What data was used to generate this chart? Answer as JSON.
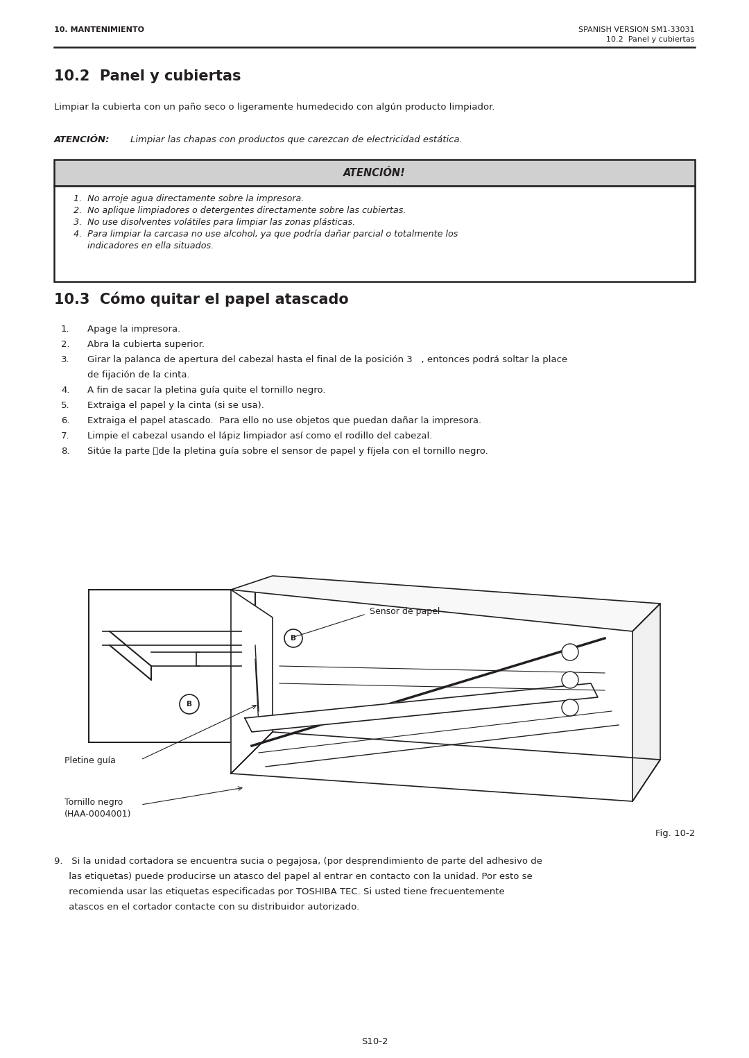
{
  "page_width": 10.8,
  "page_height": 15.25,
  "bg_color": "#ffffff",
  "header_left": "10. MANTENIMIENTO",
  "header_right": "SPANISH VERSION SM1-33031",
  "header_right2": "10.2  Panel y cubiertas",
  "section1_title": "10.2  Panel y cubiertas",
  "section1_body": "Limpiar la cubierta con un paño seco o ligeramente humedecido con algún producto limpiador.",
  "atenci_label": "ATENCIÓN:",
  "atenci_text": "Limpiar las chapas con productos que carezcan de electricidad estática.",
  "box_title": "ATENCIÓN!",
  "box_items": [
    "1.  No arroje agua directamente sobre la impresora.",
    "2.  No aplique limpiadores o detergentes directamente sobre las cubiertas.",
    "3.  No use disolventes volátiles para limpiar las zonas plásticas.",
    "4.  Para limpiar la carcasa no use alcohol, ya que podría dañar parcial o totalmente los",
    "     indicadores en ella situados."
  ],
  "section2_title": "10.3  Cómo quitar el papel atascado",
  "section2_items": [
    [
      "1.",
      "Apage la impresora."
    ],
    [
      "2.",
      "Abra la cubierta superior."
    ],
    [
      "3.",
      "Girar la palanca de apertura del cabezal hasta el final de la posición 3   , entonces podrá soltar la place"
    ],
    [
      "",
      "de fijación de la cinta."
    ],
    [
      "4.",
      "A fin de sacar la pletina guía quite el tornillo negro."
    ],
    [
      "5.",
      "Extraiga el papel y la cinta (si se usa)."
    ],
    [
      "6.",
      "Extraiga el papel atascado.  Para ello no use objetos que puedan dañar la impresora."
    ],
    [
      "7.",
      "Limpie el cabezal usando el lápiz limpiador así como el rodillo del cabezal."
    ],
    [
      "8.",
      "Sitúe la parte Ⓑde la pletina guía sobre el sensor de papel y fíjela con el tornillo negro."
    ]
  ],
  "fig_caption": "Fig. 10-2",
  "fig_label_sensor": "Sensor de papel",
  "fig_label_pletine": "Pletine guía",
  "fig_label_tornillo": "Tornillo negro\n(HAA-0004001)",
  "step9_lines": [
    "9.   Si la unidad cortadora se encuentra sucia o pegajosa, (por desprendimiento de parte del adhesivo de",
    "     las etiquetas) puede producirse un atasco del papel al entrar en contacto con la unidad. Por esto se",
    "     recomienda usar las etiquetas especificadas por TOSHIBA TEC. Si usted tiene frecuentemente",
    "     atascos en el cortador contacte con su distribuidor autorizado."
  ],
  "footer_text": "S10-2",
  "text_color": "#231f20",
  "box_bg": "#d0d0d0",
  "box_border": "#231f20"
}
